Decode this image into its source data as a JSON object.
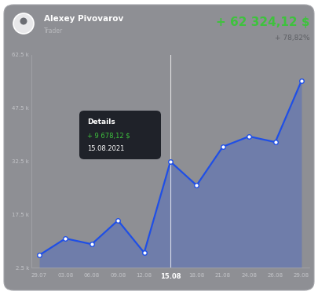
{
  "header": {
    "name": "Alexey Pivovarov",
    "role": "Trader",
    "total": "+ 62 324,12 $",
    "change": "+ 78,82%"
  },
  "chart_data": {
    "type": "line",
    "categories": [
      "29.07",
      "03.08",
      "06.08",
      "09.08",
      "12.08",
      "15.08",
      "18.08",
      "21.08",
      "24.08",
      "26.08",
      "29.08"
    ],
    "values": [
      6000,
      10700,
      9100,
      15800,
      6700,
      32400,
      25700,
      36600,
      39500,
      37900,
      55200
    ],
    "color": "#1f4fe6",
    "marker": "circle",
    "line_style": "solid",
    "ylim": [
      2500,
      62500
    ],
    "yticks": [
      {
        "value": 2500,
        "label": "2.5 k"
      },
      {
        "value": 17500,
        "label": "17.5 k"
      },
      {
        "value": 32500,
        "label": "32.5 k"
      },
      {
        "value": 47500,
        "label": "47.5 k"
      },
      {
        "value": 62500,
        "label": "62.5 k"
      }
    ],
    "grid": false,
    "annotation": {
      "category": "15.08",
      "title": "Details",
      "value": "+ 9 678,12 $",
      "date": "15.08.2021"
    }
  }
}
